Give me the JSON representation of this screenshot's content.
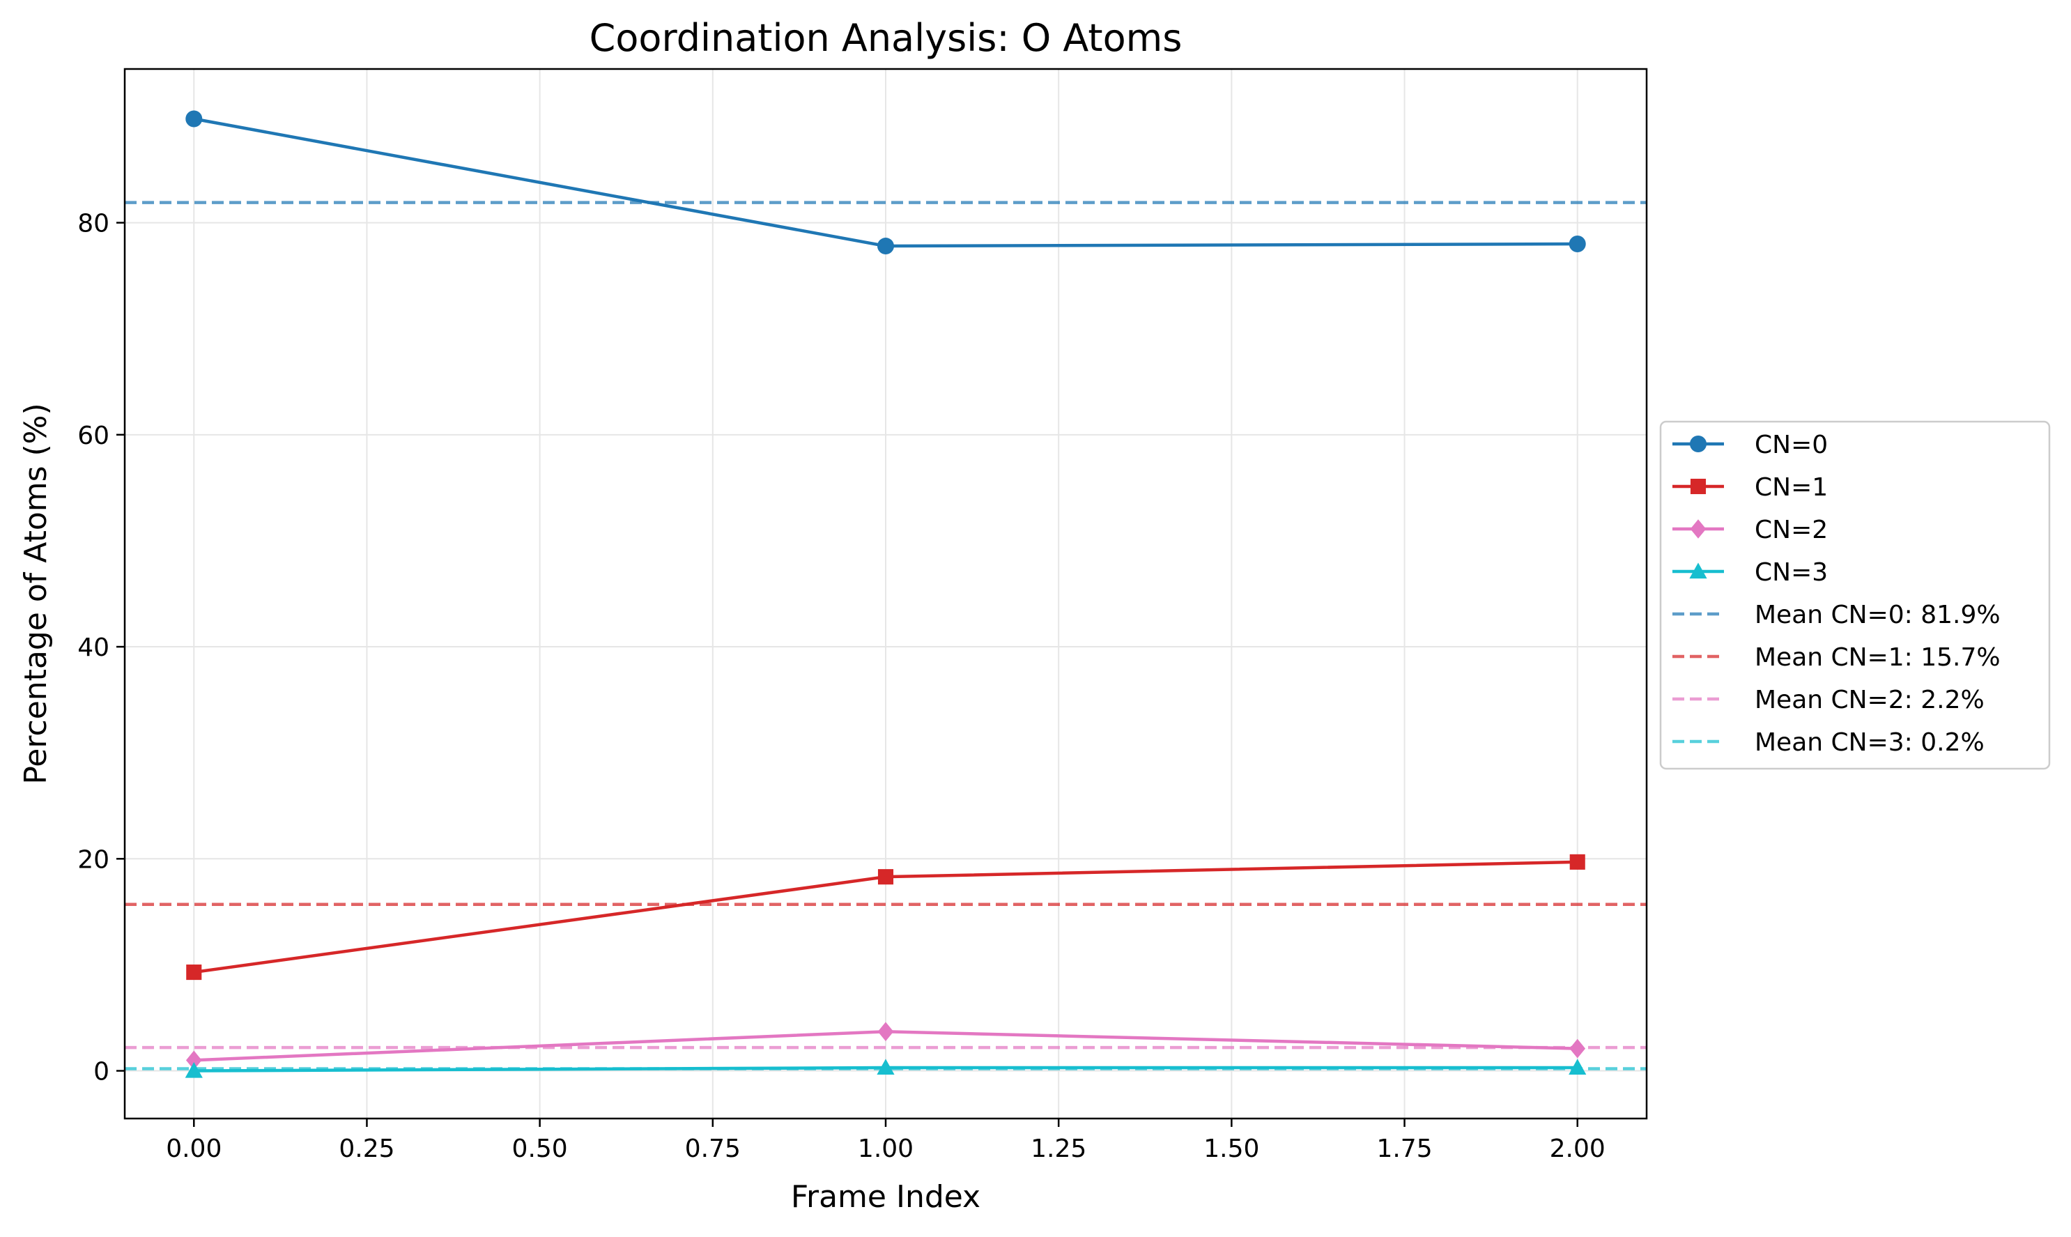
{
  "chart_data": {
    "type": "line",
    "title": "Coordination Analysis: O Atoms",
    "xlabel": "Frame Index",
    "ylabel": "Percentage of Atoms (%)",
    "xlim": [
      -0.1,
      2.1
    ],
    "ylim": [
      -4.5,
      94.5
    ],
    "xticks": [
      0.0,
      0.25,
      0.5,
      0.75,
      1.0,
      1.25,
      1.5,
      1.75,
      2.0
    ],
    "xtick_labels": [
      "0.00",
      "0.25",
      "0.50",
      "0.75",
      "1.00",
      "1.25",
      "1.50",
      "1.75",
      "2.00"
    ],
    "yticks": [
      0,
      20,
      40,
      60,
      80
    ],
    "ytick_labels": [
      "0",
      "20",
      "40",
      "60",
      "80"
    ],
    "grid": true,
    "legend_position": "right, outside plot",
    "x": [
      0,
      1,
      2
    ],
    "series": [
      {
        "name": "CN=0",
        "color": "#1f77b4",
        "marker": "circle",
        "values": [
          89.8,
          77.8,
          78.0
        ]
      },
      {
        "name": "CN=1",
        "color": "#d62728",
        "marker": "square",
        "values": [
          9.3,
          18.3,
          19.7
        ]
      },
      {
        "name": "CN=2",
        "color": "#e377c2",
        "marker": "diamond",
        "values": [
          1.0,
          3.7,
          2.1
        ]
      },
      {
        "name": "CN=3",
        "color": "#17becf",
        "marker": "triangle",
        "values": [
          0.0,
          0.3,
          0.3
        ]
      }
    ],
    "mean_lines": [
      {
        "name": "Mean CN=0: 81.9%",
        "color": "#1f77b4",
        "value": 81.9
      },
      {
        "name": "Mean CN=1: 15.7%",
        "color": "#d62728",
        "value": 15.7
      },
      {
        "name": "Mean CN=2: 2.2%",
        "color": "#e377c2",
        "value": 2.2
      },
      {
        "name": "Mean CN=3: 0.2%",
        "color": "#17becf",
        "value": 0.2
      }
    ]
  }
}
